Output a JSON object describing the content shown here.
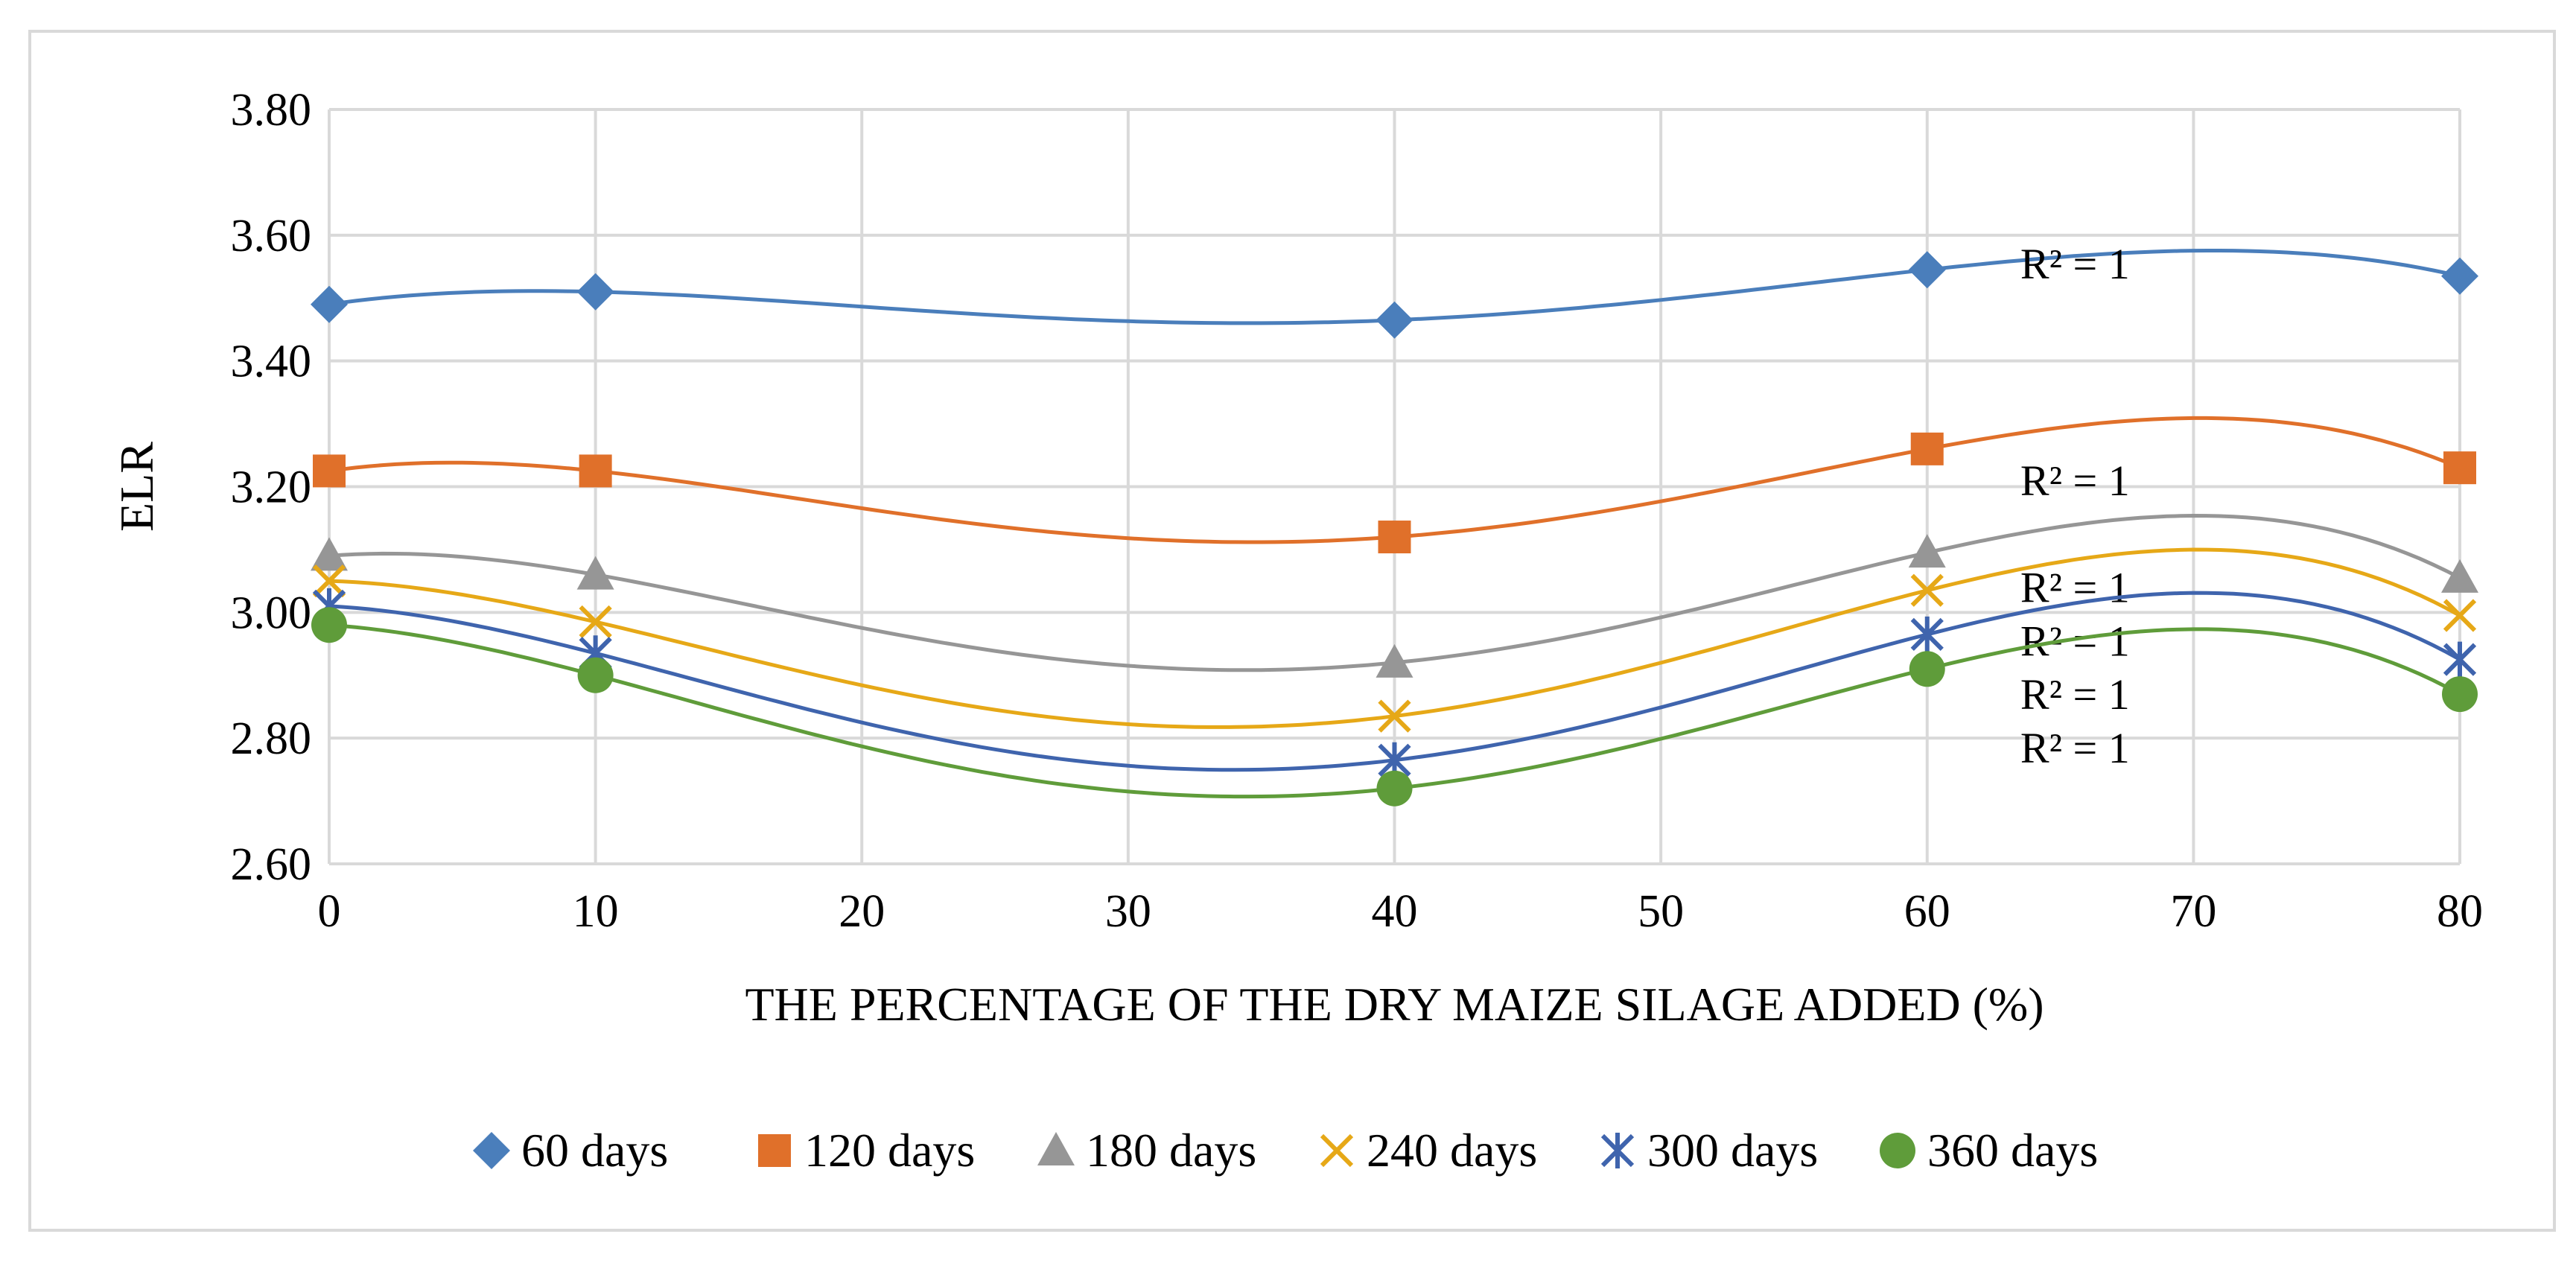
{
  "chart_data": {
    "type": "scatter",
    "title": "",
    "xlabel": "THE PERCENTAGE OF THE DRY MAIZE SILAGE ADDED (%)",
    "ylabel": "ELR",
    "xlim": [
      0,
      80
    ],
    "ylim": [
      2.6,
      3.8
    ],
    "x_ticks": [
      0,
      10,
      20,
      30,
      40,
      50,
      60,
      70,
      80
    ],
    "y_ticks": [
      2.6,
      2.8,
      3.0,
      3.2,
      3.4,
      3.6,
      3.8
    ],
    "x_tick_labels": [
      "0",
      "10",
      "20",
      "30",
      "40",
      "50",
      "60",
      "70",
      "80"
    ],
    "y_tick_labels": [
      "2.60",
      "2.80",
      "3.00",
      "3.20",
      "3.40",
      "3.60",
      "3.80"
    ],
    "grid": true,
    "legend_position": "bottom",
    "trendline": "polynomial",
    "x": [
      0,
      10,
      40,
      60,
      80
    ],
    "series": [
      {
        "name": "60 days",
        "values": [
          3.49,
          3.51,
          3.465,
          3.545,
          3.535
        ],
        "color": "#4a7ebb",
        "marker": "diamond",
        "trend": {
          "equation_label": "R² = 1",
          "label_y": 3.555
        }
      },
      {
        "name": "120 days",
        "values": [
          3.225,
          3.225,
          3.12,
          3.26,
          3.23
        ],
        "color": "#e0702a",
        "marker": "square",
        "trend": {
          "equation_label": "R² = 1",
          "label_y": 3.21
        }
      },
      {
        "name": "180 days",
        "values": [
          3.09,
          3.06,
          2.92,
          3.095,
          3.055
        ],
        "color": "#969696",
        "marker": "triangle",
        "trend": {
          "equation_label": "R² = 1",
          "label_y": 3.04
        }
      },
      {
        "name": "240 days",
        "values": [
          3.05,
          2.985,
          2.835,
          3.035,
          2.995
        ],
        "color": "#e6a817",
        "marker": "x",
        "trend": {
          "equation_label": "R² = 1",
          "label_y": 2.955
        }
      },
      {
        "name": "300 days",
        "values": [
          3.01,
          2.935,
          2.765,
          2.965,
          2.925
        ],
        "color": "#3f64ad",
        "marker": "asterisk",
        "trend": {
          "equation_label": "R² = 1",
          "label_y": 2.87
        }
      },
      {
        "name": "360 days",
        "values": [
          2.98,
          2.9,
          2.72,
          2.91,
          2.87
        ],
        "color": "#5f9c3a",
        "marker": "circle",
        "trend": {
          "equation_label": "R² = 1",
          "label_y": 2.785
        }
      }
    ]
  }
}
